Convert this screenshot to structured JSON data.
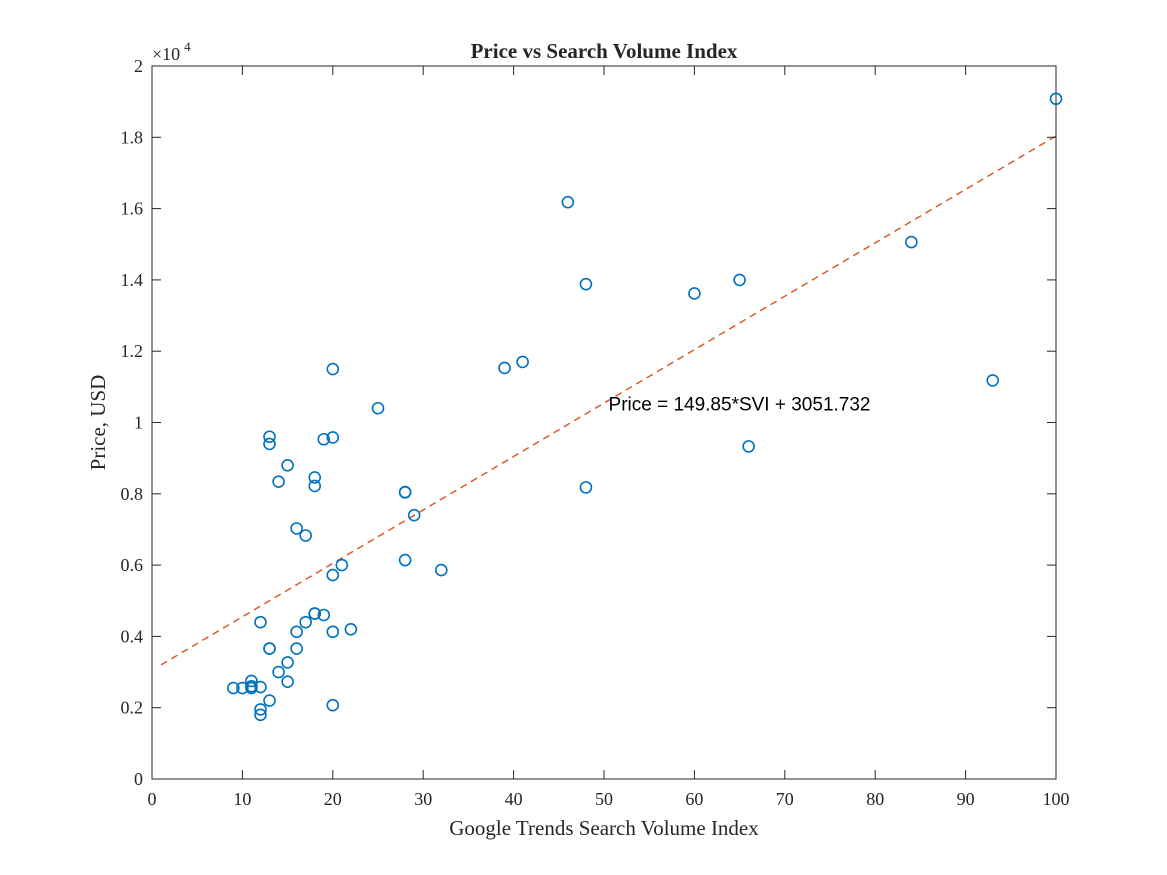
{
  "chart_data": {
    "type": "scatter",
    "title": "Price vs Search Volume Index",
    "xlabel": "Google Trends Search Volume Index",
    "ylabel": "Price, USD",
    "xlim": [
      0,
      100
    ],
    "ylim": [
      0,
      20000
    ],
    "xticks": [
      0,
      10,
      20,
      30,
      40,
      50,
      60,
      70,
      80,
      90,
      100
    ],
    "xtick_labels": [
      "0",
      "10",
      "20",
      "30",
      "40",
      "50",
      "60",
      "70",
      "80",
      "90",
      "100"
    ],
    "yticks": [
      0,
      2000,
      4000,
      6000,
      8000,
      10000,
      12000,
      14000,
      16000,
      18000,
      20000
    ],
    "ytick_labels": [
      "0",
      "0.2",
      "0.4",
      "0.6",
      "0.8",
      "1",
      "1.2",
      "1.4",
      "1.6",
      "1.8",
      "2"
    ],
    "y_exponent_multiplier": "×10",
    "y_exponent_power": "4",
    "grid": false,
    "colors": {
      "points": "#0072bd",
      "fit_line": "#d95319",
      "axes": "#262626"
    },
    "series": [
      {
        "marker": "circle",
        "x": [
          9,
          10,
          11,
          11,
          11,
          12,
          12,
          12,
          12,
          13,
          13,
          13,
          13,
          13,
          14,
          14,
          15,
          15,
          15,
          16,
          16,
          16,
          17,
          17,
          18,
          18,
          18,
          18,
          19,
          19,
          20,
          20,
          20,
          20,
          20,
          21,
          22,
          25,
          28,
          28,
          28,
          29,
          32,
          39,
          41,
          46,
          48,
          48,
          60,
          65,
          66,
          84,
          93,
          100
        ],
        "y": [
          2550,
          2550,
          2600,
          2750,
          2550,
          4400,
          2580,
          1950,
          1800,
          9600,
          9400,
          3660,
          2200,
          3660,
          8340,
          3000,
          8800,
          3270,
          2730,
          7030,
          4130,
          3660,
          6830,
          4400,
          8460,
          8220,
          4640,
          4640,
          9530,
          4600,
          11500,
          9580,
          5720,
          4130,
          2070,
          6000,
          4200,
          10400,
          8050,
          8040,
          6140,
          7400,
          5860,
          11530,
          11700,
          16180,
          13880,
          8180,
          13620,
          14000,
          9330,
          15060,
          11180,
          19080
        ]
      }
    ],
    "fit": {
      "type": "linear",
      "slope": 149.85,
      "intercept": 3051.732,
      "x_range": [
        1,
        100
      ],
      "label": "Price = 149.85*SVI + 3051.732",
      "label_position": [
        50.5,
        10500
      ]
    }
  }
}
